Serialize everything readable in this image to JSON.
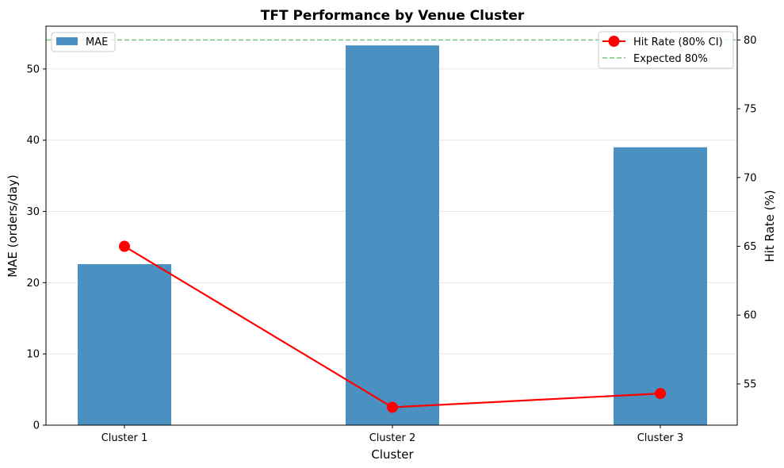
{
  "chart_data": {
    "type": "bar",
    "title": "TFT Performance by Venue Cluster",
    "xlabel": "Cluster",
    "ylabel": "MAE (orders/day)",
    "y2label": "Hit Rate (%)",
    "categories": [
      "Cluster 1",
      "Cluster 2",
      "Cluster 3"
    ],
    "ylim": [
      0,
      56
    ],
    "y2lim": [
      52,
      81
    ],
    "yticks": [
      "0",
      "10",
      "20",
      "30",
      "40",
      "50"
    ],
    "y2ticks": [
      "55",
      "60",
      "65",
      "70",
      "75",
      "80"
    ],
    "grid": "horizontal",
    "series": [
      {
        "name": "MAE",
        "type": "bar",
        "axis": "left",
        "color": "#4a90c1",
        "values": [
          22.6,
          53.3,
          39.0
        ]
      },
      {
        "name": "Hit Rate (80% CI)",
        "type": "line",
        "axis": "right",
        "color": "#ff0000",
        "marker": "circle",
        "values": [
          65.0,
          53.3,
          54.3
        ]
      },
      {
        "name": "Expected 80%",
        "type": "hline",
        "axis": "right",
        "color": "#7bc47b",
        "style": "dashed",
        "value": 80
      }
    ],
    "legends": [
      {
        "placement": "top-left",
        "entries": [
          "MAE"
        ]
      },
      {
        "placement": "top-right",
        "entries": [
          "Hit Rate (80% CI)",
          "Expected 80%"
        ]
      }
    ]
  }
}
